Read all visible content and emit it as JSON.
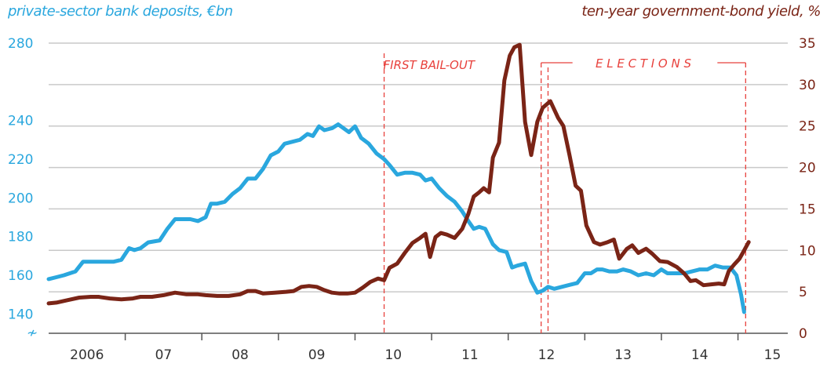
{
  "chart_data": {
    "type": "line",
    "xlabel": "",
    "y_left_label": "private-sector bank deposits, €bn",
    "y_right_label": "ten-year government-bond yield, %",
    "y_left_ticks": [
      140,
      160,
      180,
      200,
      220,
      240,
      280
    ],
    "y_left_range": [
      130,
      280
    ],
    "y_right_ticks": [
      0,
      5,
      10,
      15,
      20,
      25,
      30,
      35
    ],
    "y_right_range": [
      0,
      35
    ],
    "x_range": [
      2005.5,
      2015.15
    ],
    "x_tick_labels": [
      {
        "label": "2006",
        "x": 2006.0
      },
      {
        "label": "07",
        "x": 2007.0
      },
      {
        "label": "08",
        "x": 2008.0
      },
      {
        "label": "09",
        "x": 2009.0
      },
      {
        "label": "10",
        "x": 2010.0
      },
      {
        "label": "11",
        "x": 2011.0
      },
      {
        "label": "12",
        "x": 2012.0
      },
      {
        "label": "13",
        "x": 2013.0
      },
      {
        "label": "14",
        "x": 2014.0
      },
      {
        "label": "15",
        "x": 2014.95
      }
    ],
    "x_year_boundaries": [
      2006.5,
      2007.5,
      2008.5,
      2009.5,
      2010.5,
      2011.5,
      2012.5,
      2013.5,
      2014.5
    ],
    "axis_break_symbol": "≁",
    "grid": true,
    "colors": {
      "deposits": "#2aa7de",
      "yield": "#7a2416",
      "annotation": "#e8413c",
      "grid": "#c9c9c9"
    },
    "series": [
      {
        "axis": "left",
        "points": [
          [
            2005.5,
            158
          ],
          [
            2005.6,
            159
          ],
          [
            2005.7,
            160
          ],
          [
            2005.85,
            162
          ],
          [
            2005.95,
            167
          ],
          [
            2006.1,
            167
          ],
          [
            2006.25,
            167
          ],
          [
            2006.35,
            167
          ],
          [
            2006.45,
            168
          ],
          [
            2006.55,
            174
          ],
          [
            2006.62,
            173
          ],
          [
            2006.7,
            174
          ],
          [
            2006.8,
            177
          ],
          [
            2006.95,
            178
          ],
          [
            2007.05,
            184
          ],
          [
            2007.15,
            189
          ],
          [
            2007.25,
            189
          ],
          [
            2007.35,
            189
          ],
          [
            2007.45,
            188
          ],
          [
            2007.55,
            190
          ],
          [
            2007.62,
            197
          ],
          [
            2007.7,
            197
          ],
          [
            2007.8,
            198
          ],
          [
            2007.9,
            202
          ],
          [
            2008.0,
            205
          ],
          [
            2008.1,
            210
          ],
          [
            2008.2,
            210
          ],
          [
            2008.3,
            215
          ],
          [
            2008.4,
            222
          ],
          [
            2008.5,
            224
          ],
          [
            2008.58,
            228
          ],
          [
            2008.68,
            229
          ],
          [
            2008.78,
            230
          ],
          [
            2008.88,
            233
          ],
          [
            2008.95,
            232
          ],
          [
            2009.03,
            237
          ],
          [
            2009.1,
            235
          ],
          [
            2009.2,
            236
          ],
          [
            2009.28,
            238
          ],
          [
            2009.35,
            236
          ],
          [
            2009.42,
            234
          ],
          [
            2009.5,
            237
          ],
          [
            2009.58,
            231
          ],
          [
            2009.68,
            228
          ],
          [
            2009.78,
            223
          ],
          [
            2009.88,
            220
          ],
          [
            2009.95,
            217
          ],
          [
            2010.05,
            212
          ],
          [
            2010.15,
            213
          ],
          [
            2010.25,
            213
          ],
          [
            2010.35,
            212
          ],
          [
            2010.42,
            209
          ],
          [
            2010.5,
            210
          ],
          [
            2010.6,
            205
          ],
          [
            2010.7,
            201
          ],
          [
            2010.8,
            198
          ],
          [
            2010.9,
            193
          ],
          [
            2010.98,
            188
          ],
          [
            2011.05,
            184
          ],
          [
            2011.12,
            185
          ],
          [
            2011.2,
            184
          ],
          [
            2011.3,
            176
          ],
          [
            2011.38,
            173
          ],
          [
            2011.48,
            172
          ],
          [
            2011.55,
            164
          ],
          [
            2011.62,
            165
          ],
          [
            2011.72,
            166
          ],
          [
            2011.8,
            157
          ],
          [
            2011.88,
            151
          ],
          [
            2011.95,
            152
          ],
          [
            2012.02,
            154
          ],
          [
            2012.1,
            153
          ],
          [
            2012.2,
            154
          ],
          [
            2012.3,
            155
          ],
          [
            2012.4,
            156
          ],
          [
            2012.5,
            161
          ],
          [
            2012.58,
            161
          ],
          [
            2012.66,
            163
          ],
          [
            2012.73,
            163
          ],
          [
            2012.82,
            162
          ],
          [
            2012.92,
            162
          ],
          [
            2013.0,
            163
          ],
          [
            2013.1,
            162
          ],
          [
            2013.2,
            160
          ],
          [
            2013.3,
            161
          ],
          [
            2013.4,
            160
          ],
          [
            2013.5,
            163
          ],
          [
            2013.58,
            161
          ],
          [
            2013.7,
            161
          ],
          [
            2013.8,
            161
          ],
          [
            2013.9,
            162
          ],
          [
            2014.0,
            163
          ],
          [
            2014.1,
            163
          ],
          [
            2014.2,
            165
          ],
          [
            2014.3,
            164
          ],
          [
            2014.4,
            164
          ],
          [
            2014.48,
            160
          ],
          [
            2014.54,
            150
          ],
          [
            2014.58,
            141
          ]
        ]
      },
      {
        "axis": "right",
        "points": [
          [
            2005.5,
            3.6
          ],
          [
            2005.6,
            3.7
          ],
          [
            2005.75,
            4.0
          ],
          [
            2005.9,
            4.3
          ],
          [
            2006.05,
            4.4
          ],
          [
            2006.15,
            4.4
          ],
          [
            2006.3,
            4.2
          ],
          [
            2006.45,
            4.1
          ],
          [
            2006.6,
            4.2
          ],
          [
            2006.7,
            4.4
          ],
          [
            2006.85,
            4.4
          ],
          [
            2007.0,
            4.6
          ],
          [
            2007.15,
            4.9
          ],
          [
            2007.3,
            4.7
          ],
          [
            2007.45,
            4.7
          ],
          [
            2007.55,
            4.6
          ],
          [
            2007.7,
            4.5
          ],
          [
            2007.85,
            4.5
          ],
          [
            2008.0,
            4.7
          ],
          [
            2008.1,
            5.1
          ],
          [
            2008.2,
            5.1
          ],
          [
            2008.3,
            4.8
          ],
          [
            2008.45,
            4.9
          ],
          [
            2008.6,
            5.0
          ],
          [
            2008.7,
            5.1
          ],
          [
            2008.8,
            5.6
          ],
          [
            2008.9,
            5.7
          ],
          [
            2009.0,
            5.6
          ],
          [
            2009.1,
            5.2
          ],
          [
            2009.2,
            4.9
          ],
          [
            2009.3,
            4.8
          ],
          [
            2009.4,
            4.8
          ],
          [
            2009.5,
            4.9
          ],
          [
            2009.6,
            5.5
          ],
          [
            2009.7,
            6.2
          ],
          [
            2009.8,
            6.6
          ],
          [
            2009.88,
            6.4
          ],
          [
            2009.95,
            7.9
          ],
          [
            2010.05,
            8.4
          ],
          [
            2010.15,
            9.7
          ],
          [
            2010.25,
            10.9
          ],
          [
            2010.35,
            11.5
          ],
          [
            2010.42,
            12.0
          ],
          [
            2010.48,
            9.2
          ],
          [
            2010.55,
            11.6
          ],
          [
            2010.62,
            12.1
          ],
          [
            2010.7,
            11.9
          ],
          [
            2010.8,
            11.5
          ],
          [
            2010.9,
            12.6
          ],
          [
            2010.98,
            14.4
          ],
          [
            2011.05,
            16.5
          ],
          [
            2011.12,
            17.0
          ],
          [
            2011.18,
            17.5
          ],
          [
            2011.25,
            17.0
          ],
          [
            2011.3,
            21.2
          ],
          [
            2011.38,
            23.0
          ],
          [
            2011.45,
            30.5
          ],
          [
            2011.52,
            33.5
          ],
          [
            2011.58,
            34.5
          ],
          [
            2011.65,
            34.8
          ],
          [
            2011.72,
            25.5
          ],
          [
            2011.8,
            21.5
          ],
          [
            2011.88,
            25.5
          ],
          [
            2011.95,
            27.2
          ],
          [
            2012.05,
            28.0
          ],
          [
            2012.15,
            26.0
          ],
          [
            2012.22,
            25.0
          ],
          [
            2012.3,
            21.5
          ],
          [
            2012.38,
            17.8
          ],
          [
            2012.45,
            17.2
          ],
          [
            2012.52,
            13.0
          ],
          [
            2012.62,
            11.0
          ],
          [
            2012.7,
            10.7
          ],
          [
            2012.8,
            11.0
          ],
          [
            2012.88,
            11.3
          ],
          [
            2012.95,
            9.0
          ],
          [
            2013.05,
            10.2
          ],
          [
            2013.12,
            10.6
          ],
          [
            2013.2,
            9.7
          ],
          [
            2013.3,
            10.2
          ],
          [
            2013.38,
            9.6
          ],
          [
            2013.48,
            8.7
          ],
          [
            2013.58,
            8.6
          ],
          [
            2013.7,
            8.0
          ],
          [
            2013.8,
            7.2
          ],
          [
            2013.88,
            6.3
          ],
          [
            2013.95,
            6.4
          ],
          [
            2014.05,
            5.8
          ],
          [
            2014.15,
            5.9
          ],
          [
            2014.25,
            6.0
          ],
          [
            2014.32,
            5.9
          ],
          [
            2014.38,
            7.5
          ],
          [
            2014.45,
            8.3
          ],
          [
            2014.52,
            9.0
          ],
          [
            2014.58,
            10.0
          ],
          [
            2014.64,
            11.0
          ]
        ]
      }
    ],
    "annotations": {
      "first_bailout_label": "FIRST BAIL-OUT",
      "first_bailout_x": 2009.88,
      "elections_label": "E L E C T I O N S",
      "elections_x": [
        2011.93,
        2012.02,
        2014.6
      ]
    }
  }
}
